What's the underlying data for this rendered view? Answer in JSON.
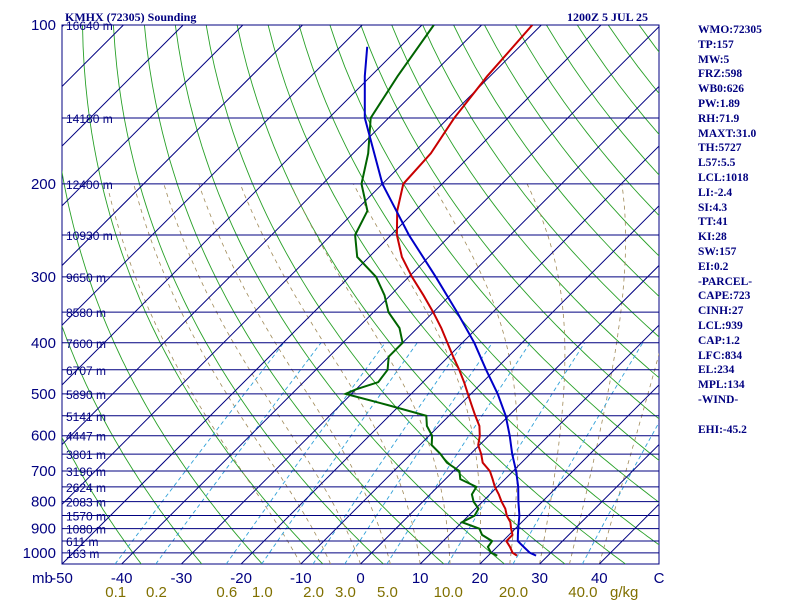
{
  "header": {
    "station": "KMHX (72305) Sounding",
    "time": "1200Z  5 JUL 25"
  },
  "chart_data": {
    "type": "skew-t log-p sounding",
    "pressure_axis": {
      "label": "mb",
      "ticks": [
        100,
        200,
        300,
        400,
        500,
        600,
        700,
        800,
        900,
        1000
      ],
      "range": [
        1050,
        100
      ],
      "scale": "log"
    },
    "temperature_axis": {
      "ticks": [
        "-50",
        "-40",
        "-30",
        "-20",
        "-10",
        "0",
        "10",
        "20",
        "30",
        "40",
        "C"
      ],
      "range_at_1050mb": [
        -50,
        50
      ]
    },
    "mixing_ratio_axis": {
      "unit": "g/kg",
      "ticks": [
        "0.1",
        "0.2",
        "0.6",
        "1.0",
        "2.0",
        "3.0",
        "5.0",
        "10.0",
        "20.0",
        "40.0"
      ]
    },
    "height_levels": [
      {
        "p": 100,
        "label": "16640 m"
      },
      {
        "p": 150,
        "label": "14180 m"
      },
      {
        "p": 200,
        "label": "12400 m"
      },
      {
        "p": 250,
        "label": "10930 m"
      },
      {
        "p": 300,
        "label": "9650 m"
      },
      {
        "p": 350,
        "label": "8580 m"
      },
      {
        "p": 400,
        "label": "7600 m"
      },
      {
        "p": 450,
        "label": "6707 m"
      },
      {
        "p": 500,
        "label": "5890 m"
      },
      {
        "p": 550,
        "label": "5141 m"
      },
      {
        "p": 600,
        "label": "4447 m"
      },
      {
        "p": 650,
        "label": "3801 m"
      },
      {
        "p": 700,
        "label": "3196 m"
      },
      {
        "p": 750,
        "label": "2624 m"
      },
      {
        "p": 800,
        "label": "2083 m"
      },
      {
        "p": 850,
        "label": "1570 m"
      },
      {
        "p": 900,
        "label": "1080 m"
      },
      {
        "p": 950,
        "label": "611 m"
      },
      {
        "p": 1000,
        "label": "163 m"
      }
    ],
    "series": [
      {
        "name": "Temperature",
        "color": "#c80000",
        "points": [
          [
            1012,
            24.8
          ],
          [
            1000,
            23.6
          ],
          [
            975,
            22.2
          ],
          [
            950,
            20.6
          ],
          [
            925,
            20.6
          ],
          [
            900,
            19.3
          ],
          [
            875,
            18.1
          ],
          [
            850,
            16.4
          ],
          [
            825,
            15.0
          ],
          [
            800,
            13.2
          ],
          [
            775,
            11.5
          ],
          [
            750,
            9.6
          ],
          [
            725,
            7.9
          ],
          [
            700,
            6.1
          ],
          [
            675,
            3.5
          ],
          [
            650,
            1.8
          ],
          [
            625,
            -0.2
          ],
          [
            600,
            -1.5
          ],
          [
            575,
            -3.2
          ],
          [
            550,
            -5.6
          ],
          [
            525,
            -8.0
          ],
          [
            500,
            -10.5
          ],
          [
            475,
            -13.1
          ],
          [
            450,
            -16.0
          ],
          [
            425,
            -19.2
          ],
          [
            400,
            -22.5
          ],
          [
            375,
            -26.0
          ],
          [
            350,
            -30.0
          ],
          [
            325,
            -34.5
          ],
          [
            300,
            -39.5
          ],
          [
            275,
            -44.5
          ],
          [
            250,
            -49.0
          ],
          [
            225,
            -53.0
          ],
          [
            200,
            -56.5
          ],
          [
            175,
            -57.0
          ],
          [
            150,
            -59.0
          ],
          [
            125,
            -60.5
          ],
          [
            100,
            -61.5
          ]
        ]
      },
      {
        "name": "Dewpoint",
        "color": "#006400",
        "points": [
          [
            1012,
            21.5
          ],
          [
            1000,
            20.0
          ],
          [
            975,
            18.5
          ],
          [
            950,
            18.2
          ],
          [
            925,
            15.5
          ],
          [
            900,
            14.0
          ],
          [
            875,
            10.0
          ],
          [
            850,
            11.0
          ],
          [
            825,
            10.5
          ],
          [
            800,
            8.5
          ],
          [
            775,
            7.0
          ],
          [
            750,
            6.5
          ],
          [
            725,
            2.5
          ],
          [
            700,
            1.0
          ],
          [
            675,
            -2.5
          ],
          [
            650,
            -5.0
          ],
          [
            625,
            -8.0
          ],
          [
            600,
            -9.5
          ],
          [
            575,
            -12.0
          ],
          [
            550,
            -13.8
          ],
          [
            525,
            -22.0
          ],
          [
            500,
            -31.0
          ],
          [
            490,
            -30.0
          ],
          [
            475,
            -27.5
          ],
          [
            450,
            -28.0
          ],
          [
            425,
            -30.0
          ],
          [
            400,
            -30.0
          ],
          [
            375,
            -33.0
          ],
          [
            350,
            -37.5
          ],
          [
            325,
            -41.0
          ],
          [
            300,
            -45.5
          ],
          [
            275,
            -52.0
          ],
          [
            250,
            -56.0
          ],
          [
            225,
            -58.0
          ],
          [
            200,
            -63.5
          ],
          [
            175,
            -67.5
          ],
          [
            150,
            -73.0
          ],
          [
            125,
            -75.5
          ],
          [
            100,
            -78.0
          ]
        ]
      },
      {
        "name": "Parcel",
        "color": "#0000c8",
        "points": [
          [
            1012,
            28.0
          ],
          [
            1000,
            26.5
          ],
          [
            975,
            24.5
          ],
          [
            950,
            22.5
          ],
          [
            925,
            21.5
          ],
          [
            900,
            20.5
          ],
          [
            850,
            18.5
          ],
          [
            800,
            16.0
          ],
          [
            750,
            13.5
          ],
          [
            700,
            10.5
          ],
          [
            650,
            7.0
          ],
          [
            600,
            3.5
          ],
          [
            550,
            -0.5
          ],
          [
            500,
            -5.5
          ],
          [
            450,
            -11.5
          ],
          [
            400,
            -18.0
          ],
          [
            350,
            -26.0
          ],
          [
            300,
            -35.5
          ],
          [
            250,
            -47.0
          ],
          [
            200,
            -60.0
          ],
          [
            150,
            -74.0
          ],
          [
            125,
            -81.0
          ],
          [
            110,
            -85.5
          ]
        ]
      }
    ]
  },
  "stats": [
    "WMO:72305",
    "TP:157",
    "MW:5",
    "FRZ:598",
    "WB0:626",
    "PW:1.89",
    "RH:71.9",
    "MAXT:31.0",
    "TH:5727",
    "L57:5.5",
    "LCL:1018",
    "LI:-2.4",
    "SI:4.3",
    "TT:41",
    "KI:28",
    "SW:157",
    "EI:0.2",
    "-PARCEL-",
    "CAPE:723",
    "CINH:27",
    "LCL:939",
    "CAP:1.2",
    "LFC:834",
    "EL:234",
    "MPL:134",
    "-WIND-",
    "",
    "EHI:-45.2"
  ]
}
